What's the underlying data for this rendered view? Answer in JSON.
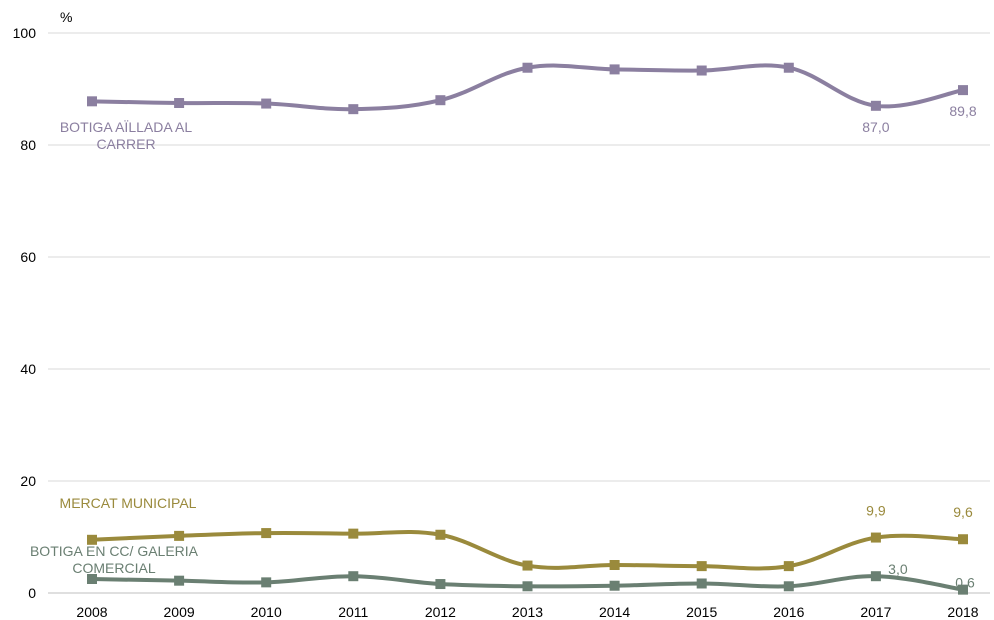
{
  "chart_data": {
    "type": "line",
    "ylabel": "%",
    "ylim": [
      0,
      100
    ],
    "yticks": [
      0,
      20,
      40,
      60,
      80,
      100
    ],
    "x": [
      "2008",
      "2009",
      "2010",
      "2011",
      "2012",
      "2013",
      "2014",
      "2015",
      "2016",
      "2017",
      "2018"
    ],
    "grid": true,
    "legend": "inline labels",
    "series": [
      {
        "name": "BOTIGA AÏLLADA AL CARRER",
        "name_lines": [
          "BOTIGA AÏLLADA AL",
          "CARRER"
        ],
        "color": "#8b7fa0",
        "values": [
          87.8,
          87.5,
          87.4,
          86.4,
          88.0,
          93.8,
          93.5,
          93.3,
          93.8,
          87.0,
          89.8
        ],
        "data_labels": [
          {
            "index": 9,
            "text": "87,0"
          },
          {
            "index": 10,
            "text": "89,8"
          }
        ]
      },
      {
        "name": "MERCAT MUNICIPAL",
        "name_lines": [
          "MERCAT MUNICIPAL"
        ],
        "color": "#9a8a3c",
        "values": [
          9.5,
          10.2,
          10.7,
          10.6,
          10.4,
          4.9,
          5.0,
          4.8,
          4.8,
          9.9,
          9.6
        ],
        "data_labels": [
          {
            "index": 9,
            "text": "9,9"
          },
          {
            "index": 10,
            "text": "9,6"
          }
        ]
      },
      {
        "name": "BOTIGA EN CC/ GALERIA COMERCIAL",
        "name_lines": [
          "BOTIGA EN CC/ GALERIA",
          "COMERCIAL"
        ],
        "color": "#6a7f72",
        "values": [
          2.5,
          2.2,
          1.9,
          3.0,
          1.6,
          1.2,
          1.3,
          1.7,
          1.2,
          3.0,
          0.6
        ],
        "data_labels": [
          {
            "index": 9,
            "text": "3,0"
          },
          {
            "index": 10,
            "text": "0,6"
          }
        ]
      }
    ]
  }
}
